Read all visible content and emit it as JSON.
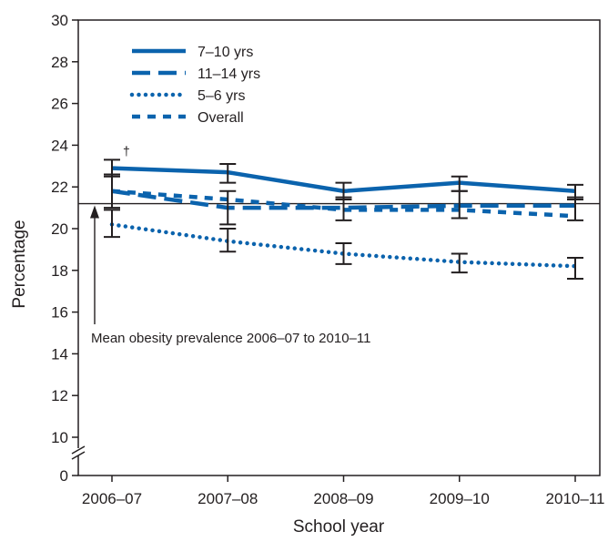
{
  "chart_data": {
    "type": "line",
    "xlabel": "School year",
    "ylabel": "Percentage",
    "categories": [
      "2006–07",
      "2007–08",
      "2008–09",
      "2009–10",
      "2010–11"
    ],
    "y_ticks": [
      "0",
      "10",
      "12",
      "14",
      "16",
      "18",
      "20",
      "22",
      "24",
      "26",
      "28",
      "30"
    ],
    "y_axis_break": true,
    "ylim": [
      10,
      30
    ],
    "series": [
      {
        "name": "7–10 yrs",
        "style": "solid",
        "color": "#0b63ad",
        "values": [
          22.9,
          22.7,
          21.8,
          22.2,
          21.8
        ],
        "error_low": [
          22.5,
          22.2,
          21.4,
          21.8,
          21.4
        ],
        "error_high": [
          23.3,
          23.1,
          22.2,
          22.5,
          22.1
        ]
      },
      {
        "name": "11–14 yrs",
        "style": "dashed",
        "color": "#0b63ad",
        "values": [
          21.8,
          21.0,
          21.0,
          21.1,
          21.1
        ],
        "error_low": [
          21.0,
          20.2,
          20.4,
          20.5,
          20.4
        ],
        "error_high": [
          22.6,
          21.8,
          21.5,
          21.8,
          21.5
        ]
      },
      {
        "name": "5–6 yrs",
        "style": "dotted",
        "color": "#0b63ad",
        "values": [
          20.2,
          19.4,
          18.8,
          18.4,
          18.2
        ],
        "error_low": [
          19.6,
          18.9,
          18.3,
          17.9,
          17.6
        ],
        "error_high": [
          20.9,
          20.0,
          19.3,
          18.8,
          18.6
        ]
      },
      {
        "name": "Overall",
        "style": "short-dashed",
        "color": "#0b63ad",
        "values": [
          21.8,
          21.4,
          20.9,
          20.9,
          20.6
        ]
      }
    ],
    "reference_line": {
      "value": 21.2,
      "label": "Mean obesity prevalence 2006–07 to 2010–11"
    },
    "annotations": [
      {
        "text": "†",
        "category_index": 0
      }
    ],
    "legend_position": "top-left",
    "grid": false
  }
}
